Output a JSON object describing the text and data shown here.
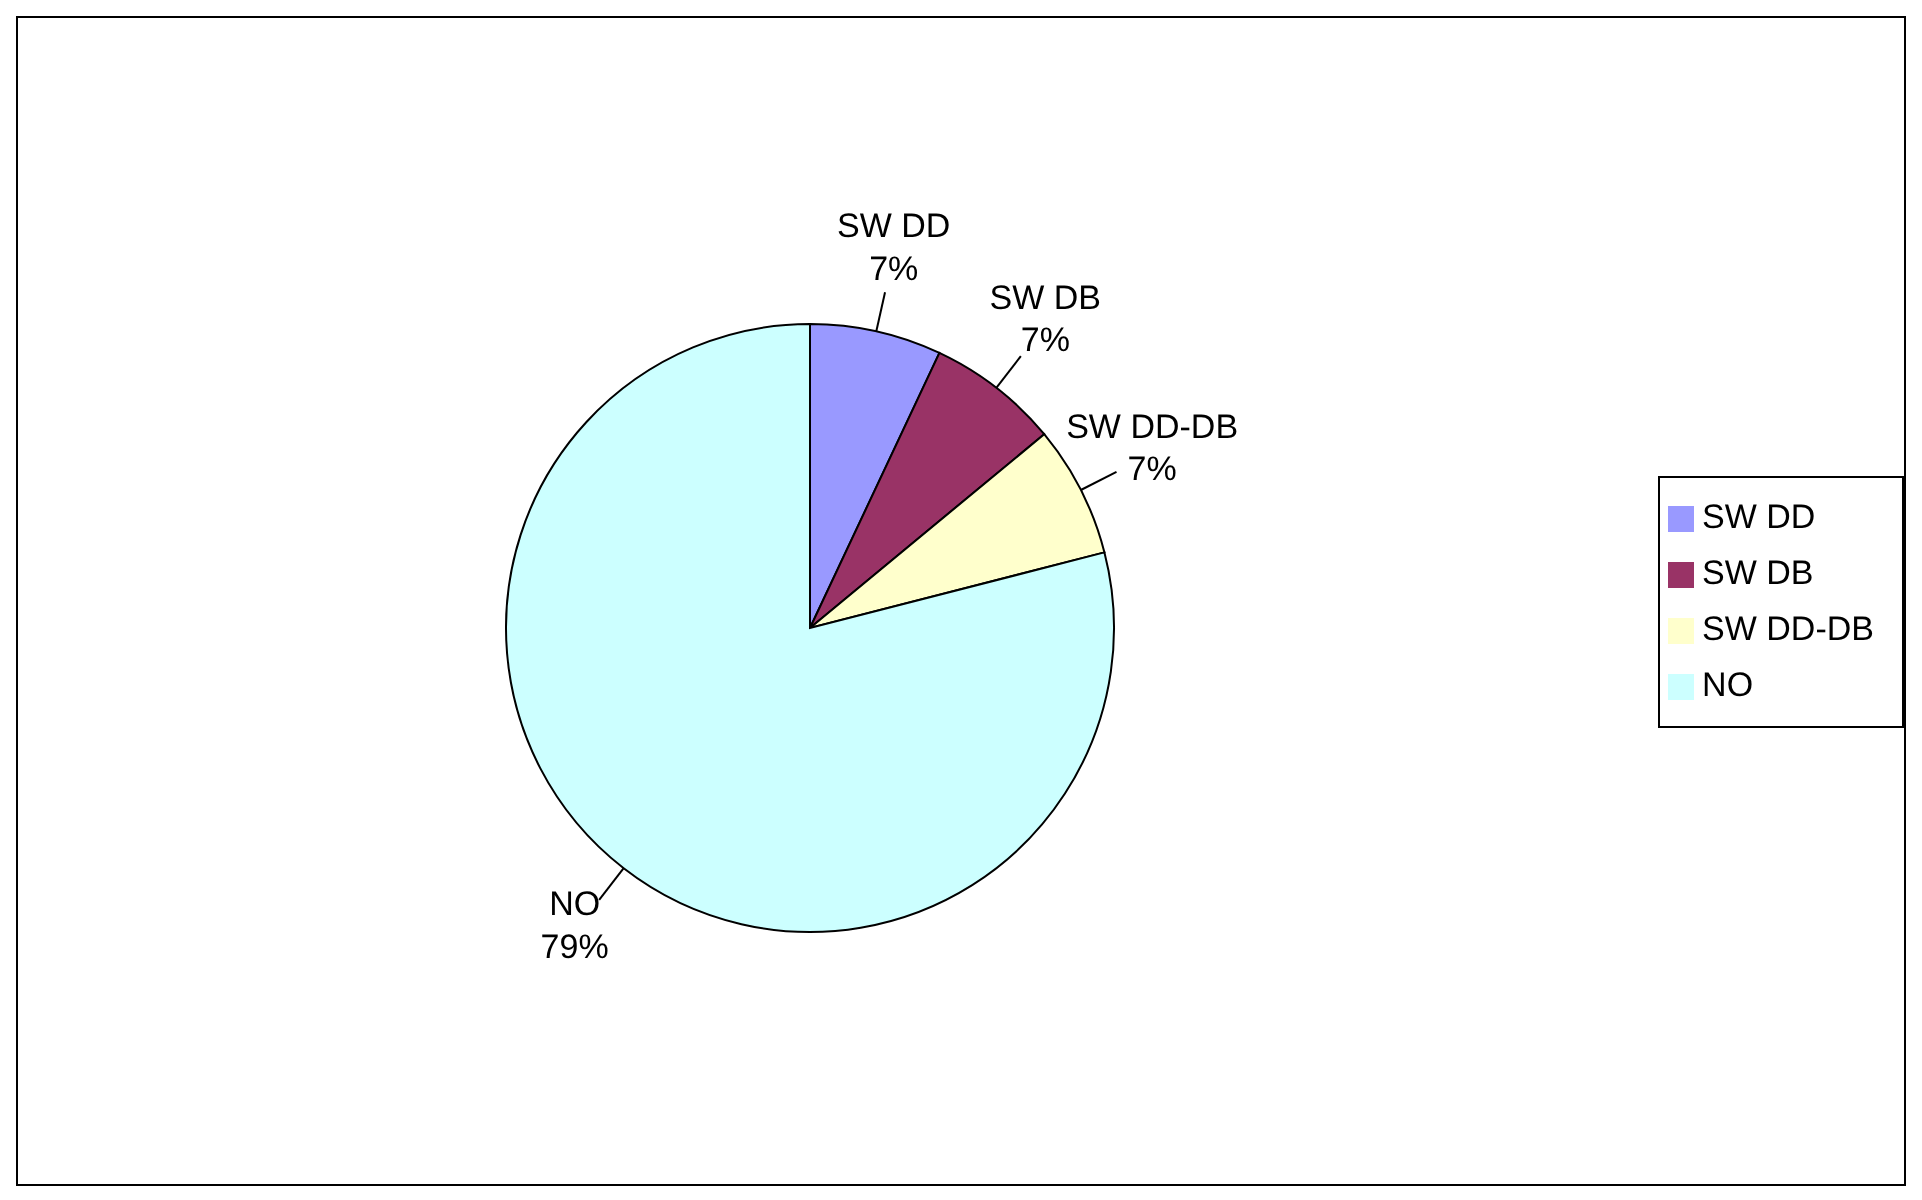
{
  "chart_data": {
    "type": "pie",
    "categories": [
      "SW DD",
      "SW DB",
      "SW DD-DB",
      "NO"
    ],
    "values": [
      7,
      7,
      7,
      79
    ],
    "value_labels": [
      "7%",
      "7%",
      "7%",
      "79%"
    ],
    "colors": [
      "#9999ff",
      "#993366",
      "#ffffcc",
      "#ccffff"
    ],
    "legend": "right"
  }
}
